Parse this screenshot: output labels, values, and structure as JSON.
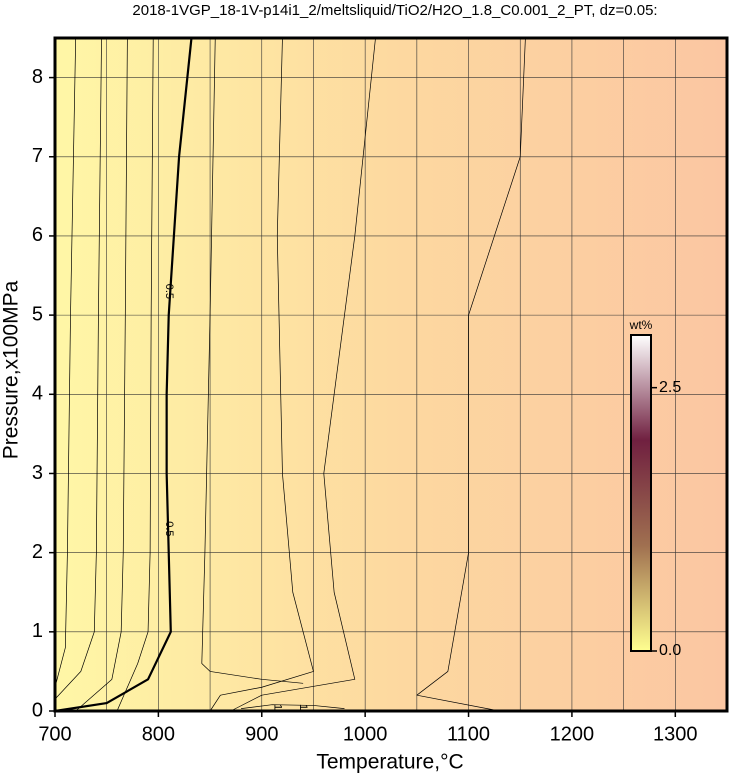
{
  "chart_data": {
    "type": "contour",
    "title": "2018-1VGP_18-1V-p14i1_2/meltsliquid/TiO2/H2O_1.8_C0.001_2_PT, dz=0.05:",
    "x_label": "Temperature,°C",
    "y_label": "Pressure,x100MPa",
    "xlim": [
      700,
      1350
    ],
    "ylim": [
      0,
      8.5
    ],
    "xticks": [
      700,
      800,
      900,
      1000,
      1100,
      1200,
      1300
    ],
    "yticks": [
      0,
      1,
      2,
      3,
      4,
      5,
      6,
      7,
      8
    ],
    "xgrid": [
      750,
      850,
      950,
      1050,
      1150,
      1250,
      1350
    ],
    "grid": true,
    "background_colors": [
      "#fff7a6",
      "#fdd9a0",
      "#fbc6a2"
    ],
    "contours": [
      {
        "color": "#000000",
        "width": 2.2,
        "x": [
          700,
          750,
          790,
          812,
          810,
          808,
          808,
          810,
          815,
          820,
          832
        ],
        "y": [
          0,
          0.1,
          0.4,
          1.0,
          2,
          3,
          4,
          5,
          6,
          7,
          8.5
        ]
      },
      {
        "color": "#000000",
        "width": 0.7,
        "x": [
          720,
          715,
          712,
          710,
          700
        ],
        "y": [
          8.5,
          5,
          2,
          0.8,
          0.3
        ]
      },
      {
        "color": "#000000",
        "width": 0.7,
        "x": [
          745,
          742,
          740,
          738,
          725,
          700
        ],
        "y": [
          8.5,
          5,
          2,
          1,
          0.5,
          0.15
        ]
      },
      {
        "color": "#000000",
        "width": 0.7,
        "x": [
          770,
          768,
          766,
          764,
          755,
          720
        ],
        "y": [
          8.5,
          5,
          2,
          1,
          0.4,
          0
        ]
      },
      {
        "color": "#000000",
        "width": 0.7,
        "x": [
          795,
          793,
          792,
          790,
          780,
          760
        ],
        "y": [
          8.5,
          5,
          2,
          1,
          0.6,
          0
        ]
      },
      {
        "color": "#000000",
        "width": 0.7,
        "x": [
          855,
          850,
          845,
          842,
          850,
          900,
          940
        ],
        "y": [
          8.5,
          5,
          2,
          0.6,
          0.5,
          0.4,
          0.35
        ]
      },
      {
        "color": "#000000",
        "width": 0.7,
        "x": [
          920,
          915,
          920,
          930,
          950,
          900,
          860,
          850
        ],
        "y": [
          8.5,
          6,
          3,
          1.5,
          0.5,
          0.3,
          0.2,
          0
        ]
      },
      {
        "color": "#000000",
        "width": 0.7,
        "x": [
          1010,
          990,
          960,
          970,
          990,
          900,
          870
        ],
        "y": [
          8.5,
          6,
          3,
          1.5,
          0.4,
          0.2,
          0
        ]
      },
      {
        "color": "#000000",
        "width": 0.7,
        "x": [
          1155,
          1150,
          1100,
          1100,
          1080,
          1050,
          1130
        ],
        "y": [
          8.5,
          7,
          5,
          2,
          0.5,
          0.2,
          0
        ]
      },
      {
        "color": "#000000",
        "width": 0.7,
        "x": [
          880,
          910,
          950,
          980
        ],
        "y": [
          0.03,
          0.08,
          0.07,
          0.03
        ]
      }
    ],
    "contour_labels": [
      {
        "text": "0.5",
        "x": 810,
        "y": 5.3
      },
      {
        "text": "0.5",
        "x": 810,
        "y": 2.3
      },
      {
        "text": "1",
        "x": 915,
        "y": 0.05
      },
      {
        "text": "1",
        "x": 940,
        "y": 0.05
      }
    ],
    "colorbar": {
      "label": "wt%",
      "lim": [
        0,
        3
      ],
      "ticks": [
        {
          "value": 0,
          "label": "0.0"
        },
        {
          "value": 2.5,
          "label": "2.5"
        }
      ],
      "colors": [
        "#ffff90",
        "#a07050",
        "#702040",
        "#ffffff"
      ]
    }
  }
}
